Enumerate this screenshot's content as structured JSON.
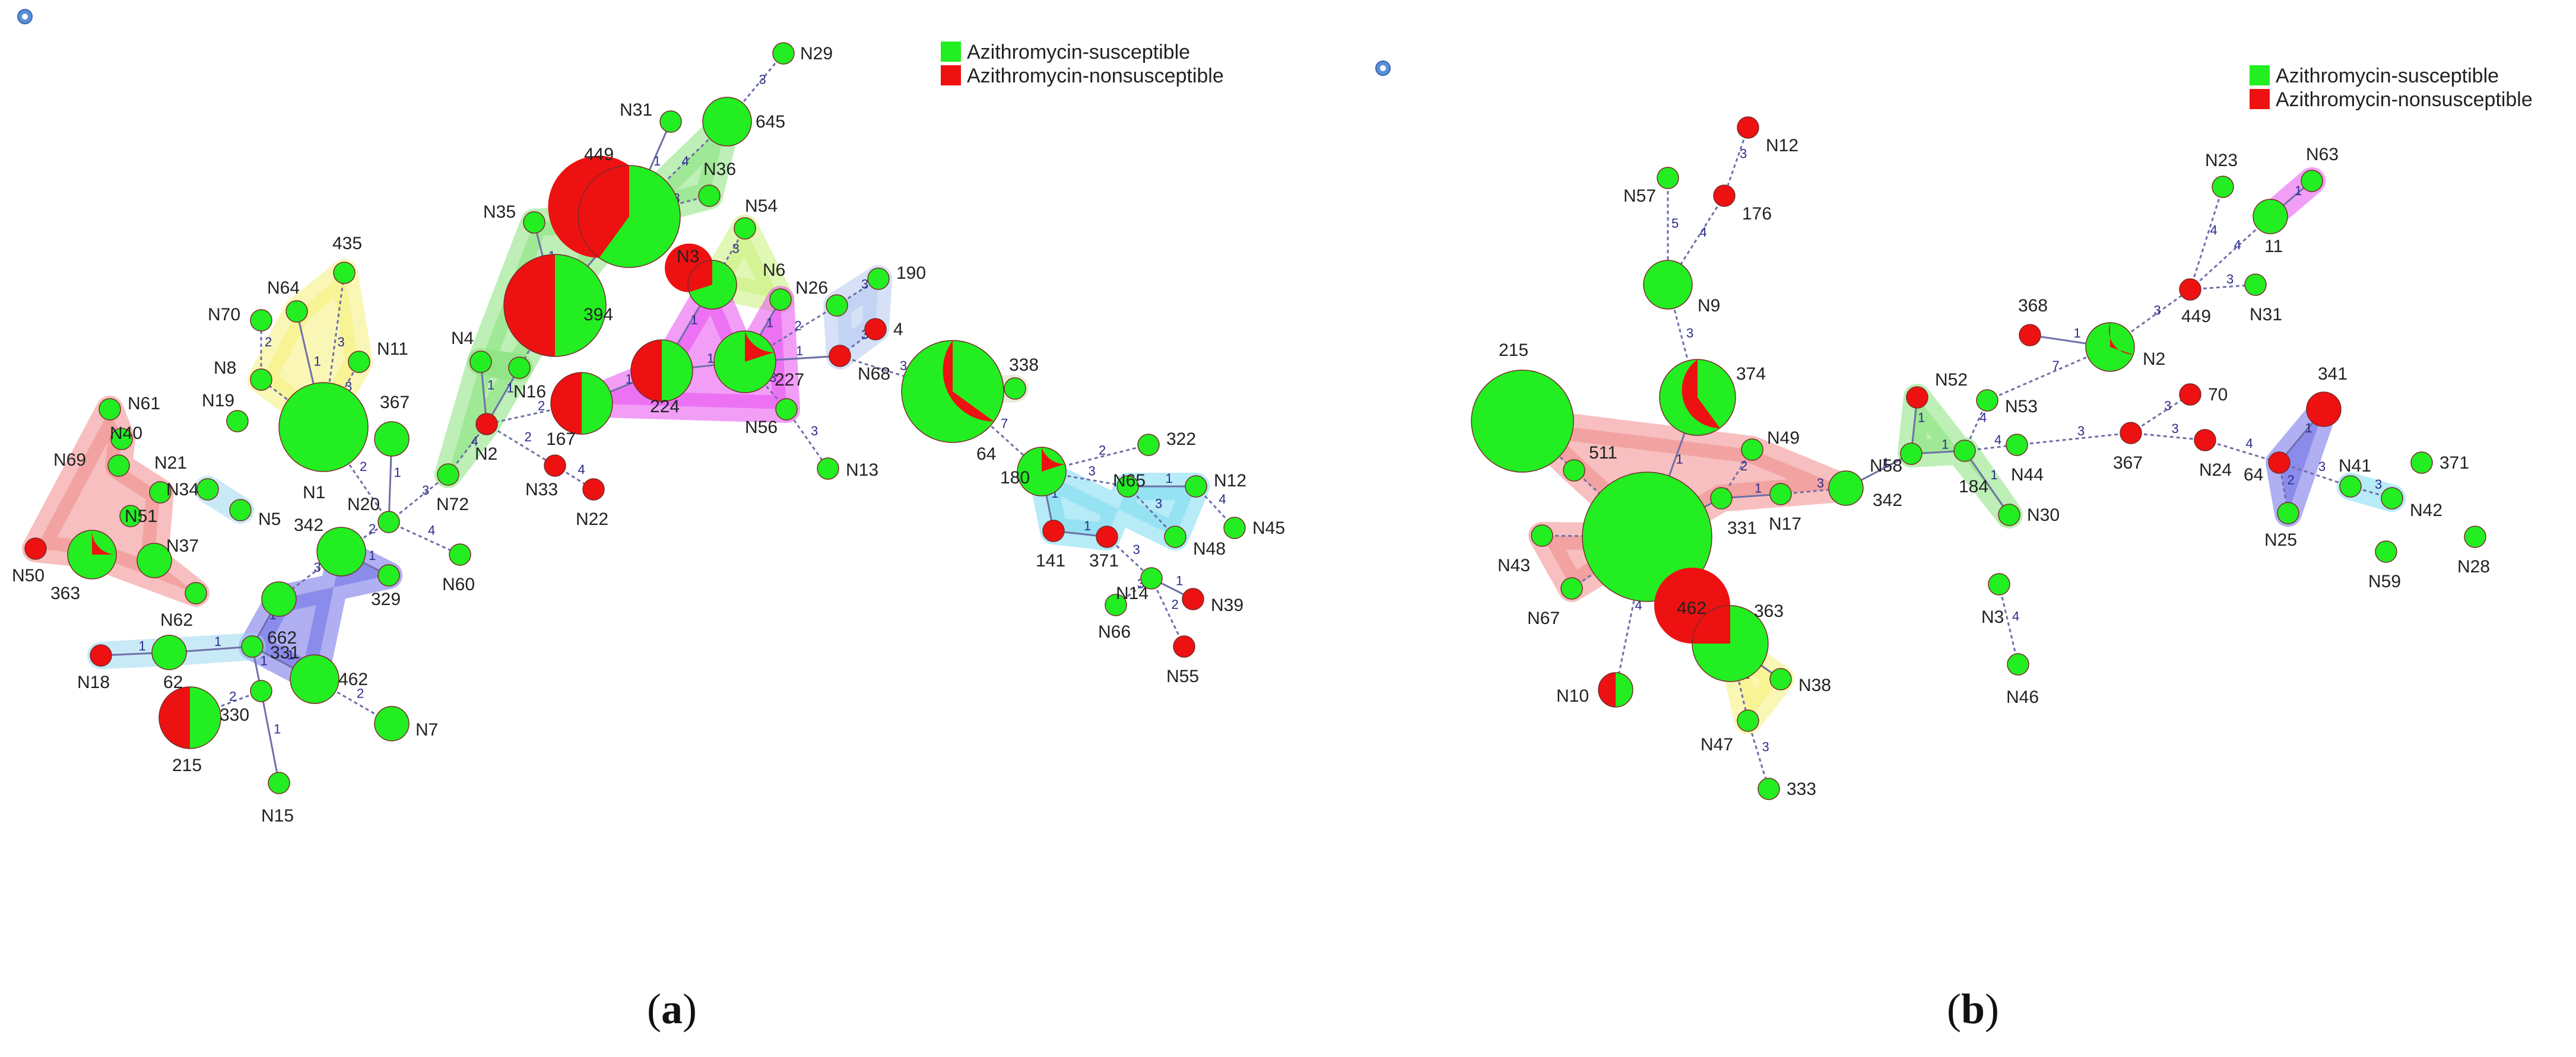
{
  "colors": {
    "susceptible": "#22ee22",
    "nonsusceptible": "#ee1111",
    "edge": "#6f6fa8",
    "node_stroke": "#7a2a2a"
  },
  "legend": {
    "susceptible": "Azithromycin-susceptible",
    "nonsusceptible": "Azithromycin-nonsusceptible"
  },
  "captions": {
    "a_open": "(",
    "a_letter": "a",
    "a_close": ")",
    "b_open": "(",
    "b_letter": "b",
    "b_close": ")"
  },
  "panel_a": {
    "nodes": [
      {
        "id": "N29",
        "r": 1,
        "ns": 0
      },
      {
        "id": "645",
        "r": 2,
        "ns": 0
      },
      {
        "id": "N31",
        "r": 1,
        "ns": 0
      },
      {
        "id": "449",
        "r": 4,
        "ns": 0.6
      },
      {
        "id": "N36",
        "r": 1,
        "ns": 0
      },
      {
        "id": "394",
        "r": 4,
        "ns": 0.5
      },
      {
        "id": "N35",
        "r": 1,
        "ns": 0
      },
      {
        "id": "N54",
        "r": 1,
        "ns": 0
      },
      {
        "id": "N3",
        "r": 2,
        "ns": 0.7
      },
      {
        "id": "N6",
        "r": 1,
        "ns": 0
      },
      {
        "id": "N26",
        "r": 1,
        "ns": 0
      },
      {
        "id": "190",
        "r": 1,
        "ns": 0
      },
      {
        "id": "4",
        "r": 1,
        "ns": 1
      },
      {
        "id": "N68",
        "r": 1,
        "ns": 1
      },
      {
        "id": "227",
        "r": 2.5,
        "ns": 0.2
      },
      {
        "id": "224",
        "r": 2.5,
        "ns": 0.5
      },
      {
        "id": "167",
        "r": 2.5,
        "ns": 0.5
      },
      {
        "id": "N56",
        "r": 1,
        "ns": 0
      },
      {
        "id": "N13",
        "r": 1,
        "ns": 0
      },
      {
        "id": "64",
        "r": 4,
        "ns": 0.35
      },
      {
        "id": "338",
        "r": 1,
        "ns": 0
      },
      {
        "id": "322",
        "r": 1,
        "ns": 0
      },
      {
        "id": "180",
        "r": 2,
        "ns": 0.2
      },
      {
        "id": "N65",
        "r": 1,
        "ns": 0
      },
      {
        "id": "N12",
        "r": 1,
        "ns": 0
      },
      {
        "id": "N45",
        "r": 1,
        "ns": 0
      },
      {
        "id": "N48",
        "r": 1,
        "ns": 0
      },
      {
        "id": "141",
        "r": 1,
        "ns": 1
      },
      {
        "id": "371",
        "r": 1,
        "ns": 1
      },
      {
        "id": "N14",
        "r": 1,
        "ns": 0
      },
      {
        "id": "N39",
        "r": 1,
        "ns": 1
      },
      {
        "id": "N66",
        "r": 1,
        "ns": 0
      },
      {
        "id": "N55",
        "r": 1,
        "ns": 1
      },
      {
        "id": "N16",
        "r": 1,
        "ns": 0
      },
      {
        "id": "N4",
        "r": 1,
        "ns": 0
      },
      {
        "id": "N2",
        "r": 1,
        "ns": 1
      },
      {
        "id": "N33",
        "r": 1,
        "ns": 1
      },
      {
        "id": "N22",
        "r": 1,
        "ns": 1
      },
      {
        "id": "N72",
        "r": 1,
        "ns": 0
      },
      {
        "id": "367",
        "r": 1.5,
        "ns": 0
      },
      {
        "id": "N1",
        "r": 3.5,
        "ns": 0
      },
      {
        "id": "N11",
        "r": 1,
        "ns": 0
      },
      {
        "id": "N8",
        "r": 1,
        "ns": 0
      },
      {
        "id": "N64",
        "r": 1,
        "ns": 0
      },
      {
        "id": "435",
        "r": 1,
        "ns": 0
      },
      {
        "id": "N70",
        "r": 1,
        "ns": 0
      },
      {
        "id": "N19",
        "r": 1,
        "ns": 0
      },
      {
        "id": "N20",
        "r": 1,
        "ns": 0
      },
      {
        "id": "N60",
        "r": 1,
        "ns": 0
      },
      {
        "id": "342",
        "r": 2,
        "ns": 0
      },
      {
        "id": "329",
        "r": 1,
        "ns": 0
      },
      {
        "id": "662",
        "r": 1.5,
        "ns": 0
      },
      {
        "id": "331",
        "r": 1,
        "ns": 0
      },
      {
        "id": "462",
        "r": 2,
        "ns": 0
      },
      {
        "id": "N7",
        "r": 1.5,
        "ns": 0
      },
      {
        "id": "330",
        "r": 1,
        "ns": 0
      },
      {
        "id": "N15",
        "r": 1,
        "ns": 0
      },
      {
        "id": "215",
        "r": 2.5,
        "ns": 0.5
      },
      {
        "id": "62",
        "r": 1.5,
        "ns": 0
      },
      {
        "id": "N18",
        "r": 1,
        "ns": 1
      },
      {
        "id": "N62",
        "r": 1,
        "ns": 0
      },
      {
        "id": "N34",
        "r": 1,
        "ns": 0
      },
      {
        "id": "N5",
        "r": 1,
        "ns": 0
      },
      {
        "id": "N37",
        "r": 1.5,
        "ns": 0
      },
      {
        "id": "363",
        "r": 2,
        "ns": 0.25
      },
      {
        "id": "N50",
        "r": 1,
        "ns": 1
      },
      {
        "id": "N51",
        "r": 1,
        "ns": 0
      },
      {
        "id": "N21",
        "r": 1,
        "ns": 0
      },
      {
        "id": "N69",
        "r": 1,
        "ns": 0
      },
      {
        "id": "N40",
        "r": 1,
        "ns": 0
      },
      {
        "id": "N61",
        "r": 1,
        "ns": 0
      }
    ],
    "edge_weights": [
      "3",
      "4",
      "1",
      "3",
      "1",
      "1",
      "2",
      "3",
      "1",
      "1",
      "3",
      "2",
      "3",
      "1",
      "1",
      "1",
      "3",
      "3",
      "3",
      "4",
      "7",
      "2",
      "3",
      "1",
      "4",
      "3",
      "1",
      "1",
      "3",
      "1",
      "3",
      "2",
      "1",
      "1",
      "2",
      "2",
      "4",
      "4",
      "3",
      "1",
      "2",
      "3",
      "3",
      "1",
      "3",
      "2",
      "2",
      "4",
      "1",
      "3",
      "1",
      "1",
      "2",
      "1",
      "1",
      "2",
      "1",
      "1"
    ]
  },
  "panel_b": {
    "nodes": [
      {
        "id": "N12",
        "r": 1,
        "ns": 1
      },
      {
        "id": "176",
        "r": 1,
        "ns": 1
      },
      {
        "id": "N57",
        "r": 1,
        "ns": 0
      },
      {
        "id": "N9",
        "r": 2,
        "ns": 0
      },
      {
        "id": "374",
        "r": 3,
        "ns": 0.4
      },
      {
        "id": "215",
        "r": 4,
        "ns": 0
      },
      {
        "id": "511",
        "r": 1,
        "ns": 0
      },
      {
        "id": "462",
        "r": 5,
        "ns": 0
      },
      {
        "id": "N43",
        "r": 1,
        "ns": 0
      },
      {
        "id": "N67",
        "r": 1,
        "ns": 0
      },
      {
        "id": "N10",
        "r": 1.5,
        "ns": 0.5
      },
      {
        "id": "N49",
        "r": 1,
        "ns": 0
      },
      {
        "id": "331",
        "r": 1,
        "ns": 0
      },
      {
        "id": "N17",
        "r": 1,
        "ns": 0
      },
      {
        "id": "342",
        "r": 1.5,
        "ns": 0
      },
      {
        "id": "363",
        "r": 3,
        "ns": 0.75
      },
      {
        "id": "N38",
        "r": 1,
        "ns": 0
      },
      {
        "id": "N47",
        "r": 1,
        "ns": 0
      },
      {
        "id": "333",
        "r": 1,
        "ns": 0
      },
      {
        "id": "N52",
        "r": 1,
        "ns": 1
      },
      {
        "id": "N58",
        "r": 1,
        "ns": 0
      },
      {
        "id": "184",
        "r": 1,
        "ns": 0
      },
      {
        "id": "N30",
        "r": 1,
        "ns": 0
      },
      {
        "id": "N53",
        "r": 1,
        "ns": 0
      },
      {
        "id": "N44",
        "r": 1,
        "ns": 0
      },
      {
        "id": "N3",
        "r": 1,
        "ns": 0
      },
      {
        "id": "N46",
        "r": 1,
        "ns": 0
      },
      {
        "id": "368",
        "r": 1,
        "ns": 1
      },
      {
        "id": "N2",
        "r": 2,
        "ns": 0.3
      },
      {
        "id": "449",
        "r": 1,
        "ns": 1
      },
      {
        "id": "N31",
        "r": 1,
        "ns": 0
      },
      {
        "id": "N23",
        "r": 1,
        "ns": 0
      },
      {
        "id": "11",
        "r": 1.5,
        "ns": 0
      },
      {
        "id": "N63",
        "r": 1,
        "ns": 0
      },
      {
        "id": "70",
        "r": 1,
        "ns": 1
      },
      {
        "id": "367",
        "r": 1,
        "ns": 1
      },
      {
        "id": "N24",
        "r": 1,
        "ns": 1
      },
      {
        "id": "341",
        "r": 1.5,
        "ns": 1
      },
      {
        "id": "64",
        "r": 1,
        "ns": 1
      },
      {
        "id": "N25",
        "r": 1,
        "ns": 0
      },
      {
        "id": "N41",
        "r": 1,
        "ns": 0
      },
      {
        "id": "N42",
        "r": 1,
        "ns": 0
      },
      {
        "id": "371",
        "r": 1,
        "ns": 0
      },
      {
        "id": "N59",
        "r": 1,
        "ns": 0
      },
      {
        "id": "N28",
        "r": 1,
        "ns": 0
      }
    ],
    "edge_weights": [
      "3",
      "4",
      "5",
      "3",
      "1",
      "2",
      "2",
      "2",
      "2",
      "4",
      "4",
      "2",
      "1",
      "1",
      "3",
      "1",
      "2",
      "3",
      "1",
      "1",
      "1",
      "4",
      "1",
      "7",
      "4",
      "4",
      "3",
      "3",
      "3",
      "1",
      "3",
      "4",
      "4",
      "3",
      "1",
      "4",
      "1",
      "2",
      "3",
      "3"
    ]
  }
}
